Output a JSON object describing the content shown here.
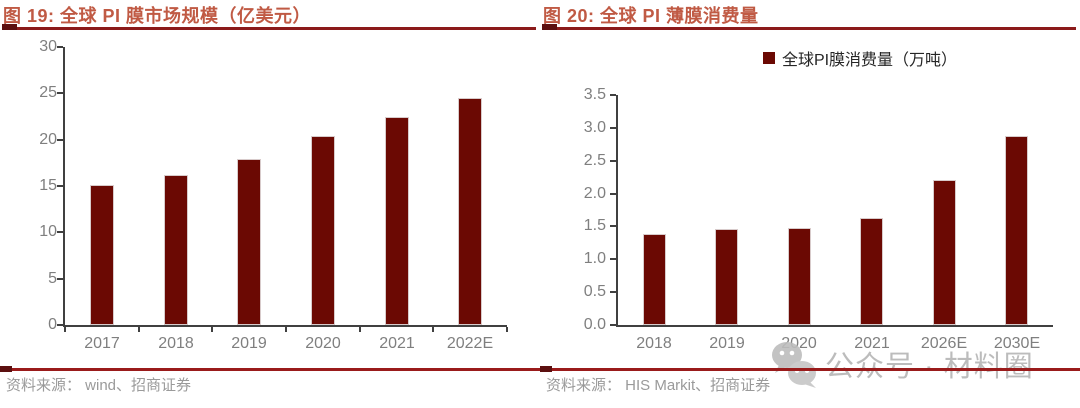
{
  "figures": [
    {
      "title": "图 19: 全球 PI 膜市场规模（亿美元）",
      "source": "资料来源： wind、招商证券"
    },
    {
      "title": "图 20: 全球 PI 薄膜消费量",
      "source": "资料来源： HIS Markit、招商证券"
    }
  ],
  "chart_data": [
    {
      "type": "bar",
      "title": "全球 PI 膜市场规模（亿美元）",
      "categories": [
        "2017",
        "2018",
        "2019",
        "2020",
        "2021",
        "2022E"
      ],
      "values": [
        15.1,
        16.2,
        17.9,
        20.4,
        22.4,
        24.5
      ],
      "ylim": [
        0,
        30
      ],
      "yticks": [
        0,
        5,
        10,
        15,
        20,
        25,
        30
      ],
      "ytick_labels": [
        "0",
        "5",
        "10",
        "15",
        "20",
        "25",
        "30"
      ],
      "xlabel": "",
      "ylabel": "",
      "legend": "",
      "grid": false,
      "bar_color": "#6B0903"
    },
    {
      "type": "bar",
      "title": "全球 PI 薄膜消费量",
      "categories": [
        "2018",
        "2019",
        "2020",
        "2021",
        "2026E",
        "2030E"
      ],
      "values": [
        1.39,
        1.46,
        1.48,
        1.63,
        2.21,
        2.87
      ],
      "ylim": [
        0,
        3.5
      ],
      "yticks": [
        0,
        0.5,
        1,
        1.5,
        2,
        2.5,
        3,
        3.5
      ],
      "ytick_labels": [
        "0.0",
        "0.5",
        "1.0",
        "1.5",
        "2.0",
        "2.5",
        "3.0",
        "3.5"
      ],
      "xlabel": "",
      "ylabel": "",
      "legend": "全球PI膜消费量（万吨）",
      "legend_position": "top-center",
      "grid": false,
      "bar_color": "#6B0903"
    }
  ],
  "watermark": {
    "icon": "wechat-icon",
    "text": "公众号 · 材料圈"
  },
  "colors": {
    "bar": "#6B0903",
    "title": "#C05A44",
    "title_rule": "#8B1A1A",
    "bottom_rule": "#9A1B1B",
    "axis": "#404040",
    "tick_label": "#7f7f7f",
    "source_text": "#9A9A9A",
    "watermark": "#b5b5b5"
  }
}
